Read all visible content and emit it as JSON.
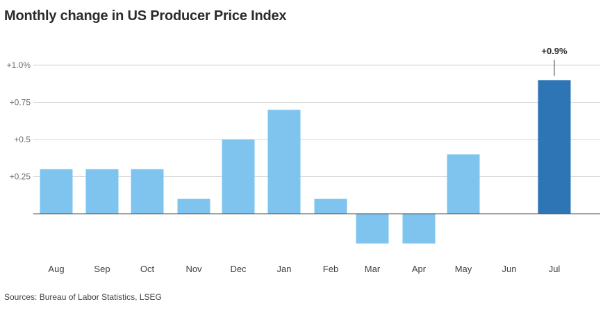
{
  "title": "Monthly change in US Producer Price Index",
  "source": "Sources: Bureau of Labor Statistics, LSEG",
  "colors": {
    "bar": "#7fc4ef",
    "highlight": "#2e75b6",
    "grid": "#d6d6d6",
    "axis": "#4a4a4a"
  },
  "chart_data": {
    "type": "bar",
    "title": "Monthly change in US Producer Price Index",
    "categories": [
      "Aug",
      "Sep",
      "Oct",
      "Nov",
      "Dec",
      "Jan",
      "Feb",
      "Mar",
      "Apr",
      "May",
      "Jun",
      "Jul"
    ],
    "values": [
      0.3,
      0.3,
      0.3,
      0.1,
      0.5,
      0.7,
      0.1,
      -0.2,
      -0.2,
      0.4,
      0.0,
      0.9
    ],
    "highlight_index": 11,
    "y_ticks": [
      {
        "value": 1.0,
        "label": "+1.0%"
      },
      {
        "value": 0.75,
        "label": "+0.75"
      },
      {
        "value": 0.5,
        "label": "+0.5"
      },
      {
        "value": 0.25,
        "label": "+0.25"
      }
    ],
    "ylim": [
      -0.3,
      1.0
    ],
    "annotation": {
      "index": 11,
      "text": "+0.9%"
    },
    "xlabel": "",
    "ylabel": "",
    "grid": true
  }
}
